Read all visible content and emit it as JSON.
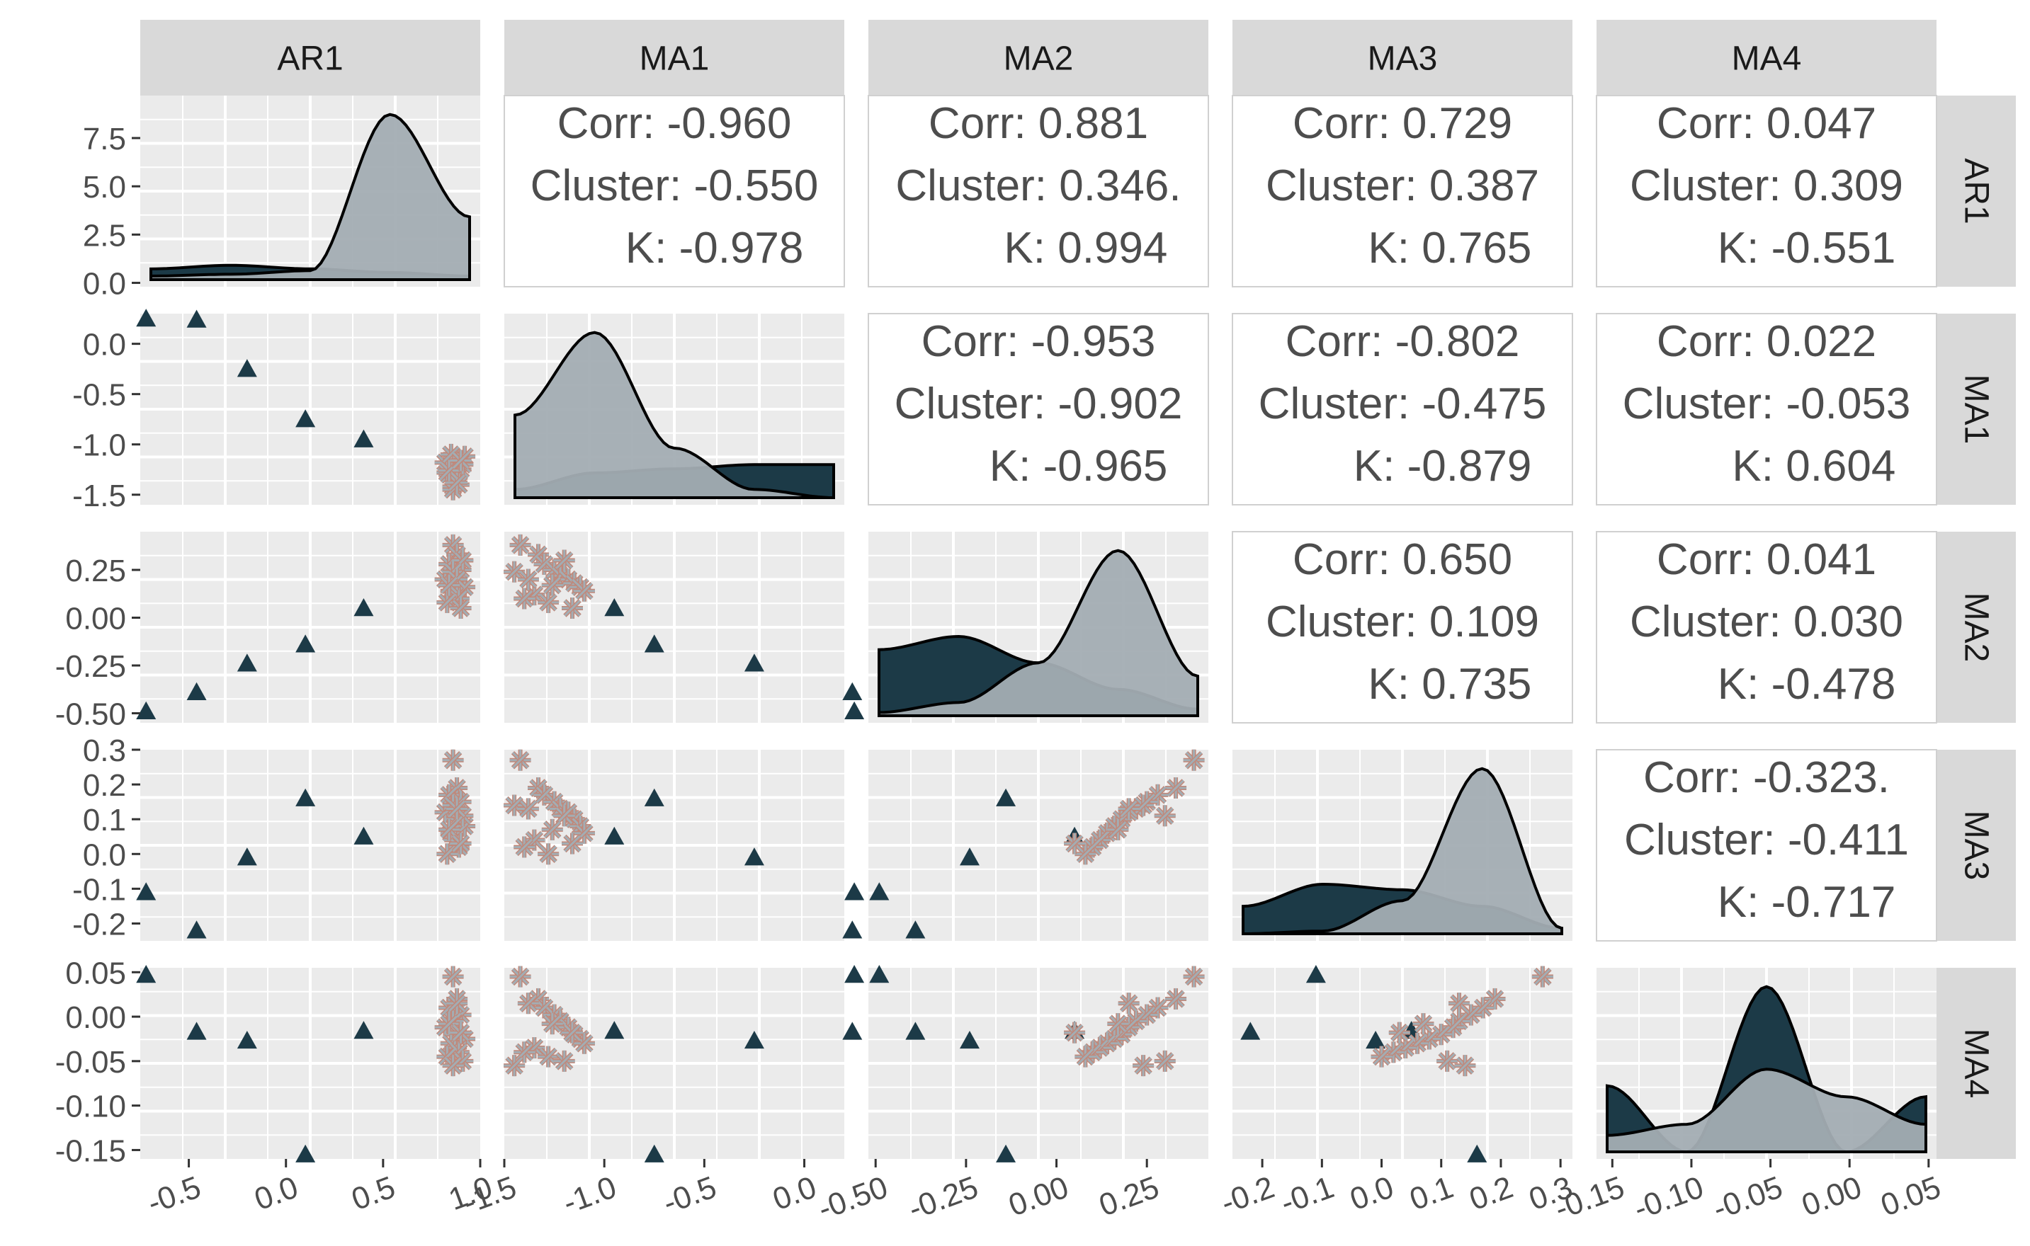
{
  "variables": [
    "AR1",
    "MA1",
    "MA2",
    "MA3",
    "MA4"
  ],
  "colors": {
    "cluster_a": "#a3adb3",
    "cluster_b": "#1c3a47",
    "asterisk_edge": "#c0887a",
    "panel": "#ebebeb",
    "strip": "#d9d9d9",
    "text": "#4d4d4d",
    "tick": "#333333"
  },
  "chart_data": {
    "type": "scatter",
    "title": "",
    "legend": "none",
    "axes": [
      {
        "var": "AR1",
        "range": [
          -0.75,
          1.0
        ],
        "ticks": [
          -0.5,
          0.0,
          0.5,
          1.0
        ],
        "tick_labels": [
          "-0.5",
          "0.0",
          "0.5",
          "1.0"
        ]
      },
      {
        "var": "MA1",
        "range": [
          -1.5,
          0.2
        ],
        "ticks": [
          -1.5,
          -1.0,
          -0.5,
          0.0
        ],
        "tick_labels": [
          "-1.5",
          "-1.0",
          "-0.5",
          "0.0"
        ]
      },
      {
        "var": "MA2",
        "range": [
          -0.52,
          0.42
        ],
        "ticks": [
          -0.5,
          -0.25,
          0.0,
          0.25
        ],
        "tick_labels": [
          "-0.50",
          "-0.25",
          "0.00",
          "0.25"
        ]
      },
      {
        "var": "MA3",
        "range": [
          -0.25,
          0.32
        ],
        "ticks": [
          -0.2,
          -0.1,
          0.0,
          0.1,
          0.2,
          0.3
        ],
        "tick_labels": [
          "-0.2",
          "-0.1",
          "0.0",
          "0.1",
          "0.2",
          "0.3"
        ]
      },
      {
        "var": "MA4",
        "range": [
          -0.16,
          0.055
        ],
        "ticks": [
          -0.15,
          -0.1,
          -0.05,
          0.0,
          0.05
        ],
        "tick_labels": [
          "-0.15",
          "-0.10",
          "-0.05",
          "0.00",
          "0.05"
        ]
      }
    ],
    "y_axes": [
      {
        "var": "AR1",
        "range": [
          -0.2,
          9.7
        ],
        "ticks": [
          0.0,
          2.5,
          5.0,
          7.5
        ],
        "tick_labels": [
          "0.0",
          "2.5",
          "5.0",
          "7.5"
        ]
      },
      {
        "var": "MA1",
        "range": [
          -1.6,
          0.3
        ],
        "ticks": [
          -1.5,
          -1.0,
          -0.5,
          0.0
        ],
        "tick_labels": [
          "-1.5",
          "-1.0",
          "-0.5",
          "0.0"
        ]
      },
      {
        "var": "MA2",
        "range": [
          -0.55,
          0.45
        ],
        "ticks": [
          -0.5,
          -0.25,
          0.0,
          0.25
        ],
        "tick_labels": [
          "-0.50",
          "-0.25",
          "0.00",
          "0.25"
        ]
      },
      {
        "var": "MA3",
        "range": [
          -0.25,
          0.3
        ],
        "ticks": [
          -0.2,
          -0.1,
          0.0,
          0.1,
          0.2,
          0.3
        ],
        "tick_labels": [
          "-0.2",
          "-0.1",
          "0.0",
          "0.1",
          "0.2",
          "0.3"
        ]
      },
      {
        "var": "MA4",
        "range": [
          -0.16,
          0.055
        ],
        "ticks": [
          -0.15,
          -0.1,
          -0.05,
          0.0,
          0.05
        ],
        "tick_labels": [
          "-0.15",
          "-0.10",
          "-0.05",
          "0.00",
          "0.05"
        ]
      }
    ],
    "correlations": [
      {
        "row": 0,
        "col": 1,
        "lines": [
          "Corr: -0.960",
          "Cluster: -0.550",
          "K: -0.978"
        ]
      },
      {
        "row": 0,
        "col": 2,
        "lines": [
          "Corr: 0.881",
          "Cluster: 0.346.",
          "K: 0.994"
        ]
      },
      {
        "row": 0,
        "col": 3,
        "lines": [
          "Corr: 0.729",
          "Cluster: 0.387",
          "K: 0.765"
        ]
      },
      {
        "row": 0,
        "col": 4,
        "lines": [
          "Corr: 0.047",
          "Cluster: 0.309",
          "K: -0.551"
        ]
      },
      {
        "row": 1,
        "col": 2,
        "lines": [
          "Corr: -0.953",
          "Cluster: -0.902",
          "K: -0.965"
        ]
      },
      {
        "row": 1,
        "col": 3,
        "lines": [
          "Corr: -0.802",
          "Cluster: -0.475",
          "K: -0.879"
        ]
      },
      {
        "row": 1,
        "col": 4,
        "lines": [
          "Corr: 0.022",
          "Cluster: -0.053",
          "K: 0.604"
        ]
      },
      {
        "row": 2,
        "col": 3,
        "lines": [
          "Corr: 0.650",
          "Cluster: 0.109",
          "K: 0.735"
        ]
      },
      {
        "row": 2,
        "col": 4,
        "lines": [
          "Corr: 0.041",
          "Cluster: 0.030",
          "K: -0.478"
        ]
      },
      {
        "row": 3,
        "col": 4,
        "lines": [
          "Corr: -0.323.",
          "Cluster: -0.411",
          "K: -0.717"
        ]
      }
    ],
    "series": [
      {
        "name": "K",
        "marker": "triangle",
        "points": [
          {
            "AR1": -0.72,
            "MA1": 0.25,
            "MA2": -0.49,
            "MA3": -0.11,
            "MA4": 0.047
          },
          {
            "AR1": -0.46,
            "MA1": 0.24,
            "MA2": -0.39,
            "MA3": -0.22,
            "MA4": -0.017
          },
          {
            "AR1": -0.2,
            "MA1": -0.25,
            "MA2": -0.24,
            "MA3": -0.01,
            "MA4": -0.027
          },
          {
            "AR1": 0.1,
            "MA1": -0.75,
            "MA2": -0.14,
            "MA3": 0.16,
            "MA4": -0.155
          },
          {
            "AR1": 0.4,
            "MA1": -0.95,
            "MA2": 0.05,
            "MA3": 0.05,
            "MA4": -0.016
          }
        ]
      },
      {
        "name": "Cluster",
        "marker": "asterisk",
        "points": [
          {
            "AR1": 0.86,
            "MA1": -1.42,
            "MA2": 0.38,
            "MA3": 0.27,
            "MA4": 0.045
          },
          {
            "AR1": 0.88,
            "MA1": -1.33,
            "MA2": 0.33,
            "MA3": 0.19,
            "MA4": 0.02
          },
          {
            "AR1": 0.84,
            "MA1": -1.3,
            "MA2": 0.28,
            "MA3": 0.17,
            "MA4": 0.01
          },
          {
            "AR1": 0.9,
            "MA1": -1.25,
            "MA2": 0.25,
            "MA3": 0.15,
            "MA4": 0.002
          },
          {
            "AR1": 0.86,
            "MA1": -1.22,
            "MA2": 0.22,
            "MA3": 0.13,
            "MA4": -0.005
          },
          {
            "AR1": 0.82,
            "MA1": -1.18,
            "MA2": 0.2,
            "MA3": 0.12,
            "MA4": -0.012
          },
          {
            "AR1": 0.88,
            "MA1": -1.15,
            "MA2": 0.18,
            "MA3": 0.1,
            "MA4": -0.02
          },
          {
            "AR1": 0.92,
            "MA1": -1.12,
            "MA2": 0.16,
            "MA3": 0.08,
            "MA4": -0.025
          },
          {
            "AR1": 0.85,
            "MA1": -1.1,
            "MA2": 0.14,
            "MA3": 0.06,
            "MA4": -0.03
          },
          {
            "AR1": 0.87,
            "MA1": -1.35,
            "MA2": 0.12,
            "MA3": 0.04,
            "MA4": -0.035
          },
          {
            "AR1": 0.89,
            "MA1": -1.4,
            "MA2": 0.1,
            "MA3": 0.02,
            "MA4": -0.04
          },
          {
            "AR1": 0.83,
            "MA1": -1.28,
            "MA2": 0.08,
            "MA3": 0.0,
            "MA4": -0.045
          },
          {
            "AR1": 0.91,
            "MA1": -1.2,
            "MA2": 0.3,
            "MA3": 0.11,
            "MA4": -0.05
          },
          {
            "AR1": 0.86,
            "MA1": -1.45,
            "MA2": 0.24,
            "MA3": 0.14,
            "MA4": -0.055
          },
          {
            "AR1": 0.88,
            "MA1": -1.38,
            "MA2": 0.2,
            "MA3": 0.13,
            "MA4": 0.015
          },
          {
            "AR1": 0.84,
            "MA1": -1.26,
            "MA2": 0.17,
            "MA3": 0.07,
            "MA4": -0.008
          },
          {
            "AR1": 0.9,
            "MA1": -1.16,
            "MA2": 0.05,
            "MA3": 0.03,
            "MA4": -0.018
          }
        ]
      }
    ],
    "density": {
      "AR1": {
        "a": [
          0.2,
          0.3,
          0.5,
          9.2,
          3.5
        ],
        "b": [
          0.6,
          0.8,
          0.6,
          0.4,
          0.2
        ]
      },
      "MA1": {
        "a": [
          1.0,
          2.0,
          0.6,
          0.1,
          0.0
        ],
        "b": [
          0.1,
          0.3,
          0.35,
          0.4,
          0.4
        ]
      },
      "MA2": {
        "a": [
          0.05,
          0.2,
          0.8,
          2.5,
          0.6
        ],
        "b": [
          1.0,
          1.2,
          0.8,
          0.4,
          0.1
        ]
      },
      "MA3": {
        "a": [
          0.0,
          0.05,
          0.6,
          3.0,
          0.1
        ],
        "b": [
          0.5,
          0.9,
          0.8,
          0.5,
          0.1
        ]
      },
      "MA4": {
        "a": [
          0.3,
          0.5,
          1.5,
          1.0,
          0.5
        ],
        "b": [
          1.2,
          0.0,
          3.0,
          0.0,
          1.0
        ]
      }
    }
  }
}
